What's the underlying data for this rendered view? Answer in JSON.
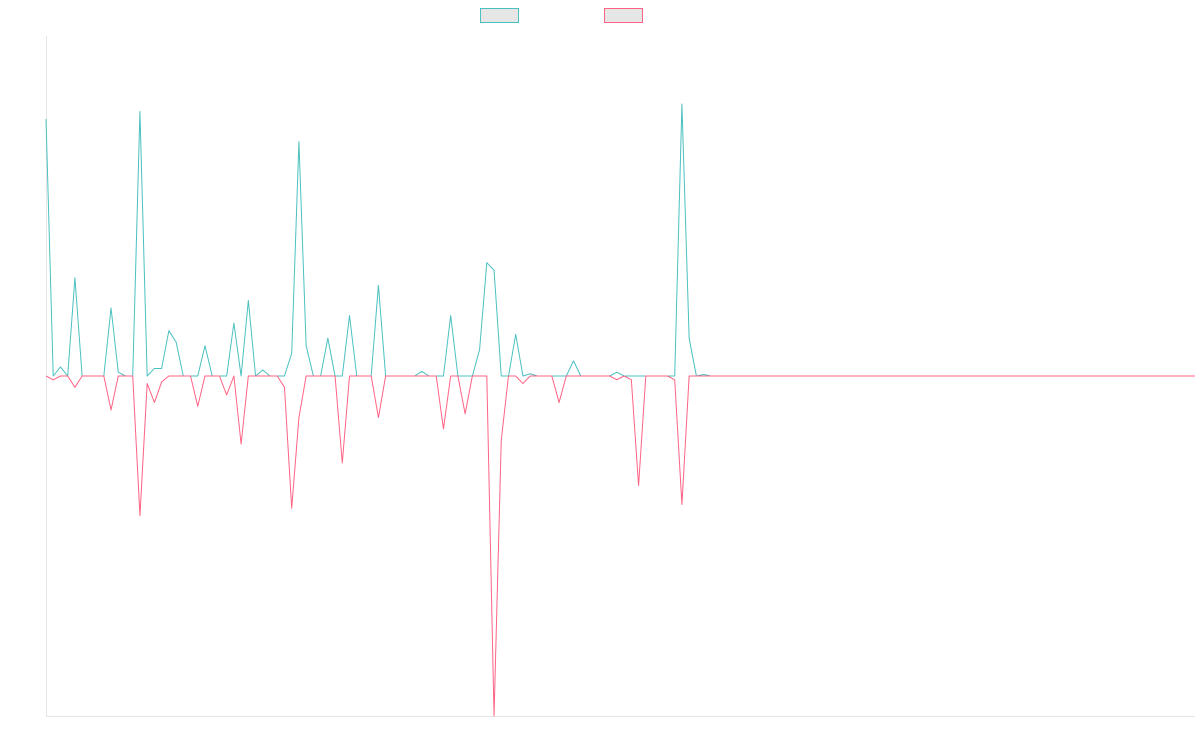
{
  "chart_data": {
    "type": "line",
    "title": "",
    "xlabel": "",
    "ylabel": "",
    "grid": false,
    "legend_position": "top-center",
    "x_count": 160,
    "ylim": [
      -45,
      45
    ],
    "series": [
      {
        "name": "",
        "color": "#4bc0c0",
        "points": [
          [
            0,
            34
          ],
          [
            2,
            1.2
          ],
          [
            4,
            13
          ],
          [
            9,
            9
          ],
          [
            10,
            0.5
          ],
          [
            13,
            35
          ],
          [
            15,
            1
          ],
          [
            16,
            1
          ],
          [
            17,
            6
          ],
          [
            17.7,
            4.5
          ],
          [
            22,
            4
          ],
          [
            26,
            7
          ],
          [
            28,
            10
          ],
          [
            30,
            0.8
          ],
          [
            34,
            3
          ],
          [
            35,
            31
          ],
          [
            35.6,
            4
          ],
          [
            39,
            5
          ],
          [
            42,
            8
          ],
          [
            46,
            12
          ],
          [
            52,
            0.6
          ],
          [
            56,
            8
          ],
          [
            60,
            3.5
          ],
          [
            61,
            15
          ],
          [
            62,
            14
          ],
          [
            65,
            5.5
          ],
          [
            67,
            0.3
          ],
          [
            73,
            2
          ],
          [
            79,
            0.5
          ],
          [
            88,
            36
          ],
          [
            89,
            5
          ],
          [
            91,
            0.2
          ]
        ]
      },
      {
        "name": "",
        "color": "#ff6384",
        "points": [
          [
            1,
            -0.5
          ],
          [
            4,
            -1.5
          ],
          [
            9,
            -4.5
          ],
          [
            13,
            -18.5
          ],
          [
            14,
            -1
          ],
          [
            15,
            -3.5
          ],
          [
            16,
            -0.8
          ],
          [
            21,
            -4
          ],
          [
            25,
            -2.5
          ],
          [
            27,
            -9
          ],
          [
            33,
            -1.5
          ],
          [
            34,
            -17.5
          ],
          [
            35,
            -5.5
          ],
          [
            41,
            -11.5
          ],
          [
            46,
            -5.5
          ],
          [
            55,
            -7
          ],
          [
            58,
            -5
          ],
          [
            62,
            -45
          ],
          [
            62.5,
            -8.5
          ],
          [
            66,
            -1
          ],
          [
            71,
            -3.5
          ],
          [
            79,
            -0.5
          ],
          [
            81,
            -0.5
          ],
          [
            82,
            -14.5
          ],
          [
            87,
            -0.5
          ],
          [
            88,
            -17
          ]
        ]
      }
    ]
  }
}
